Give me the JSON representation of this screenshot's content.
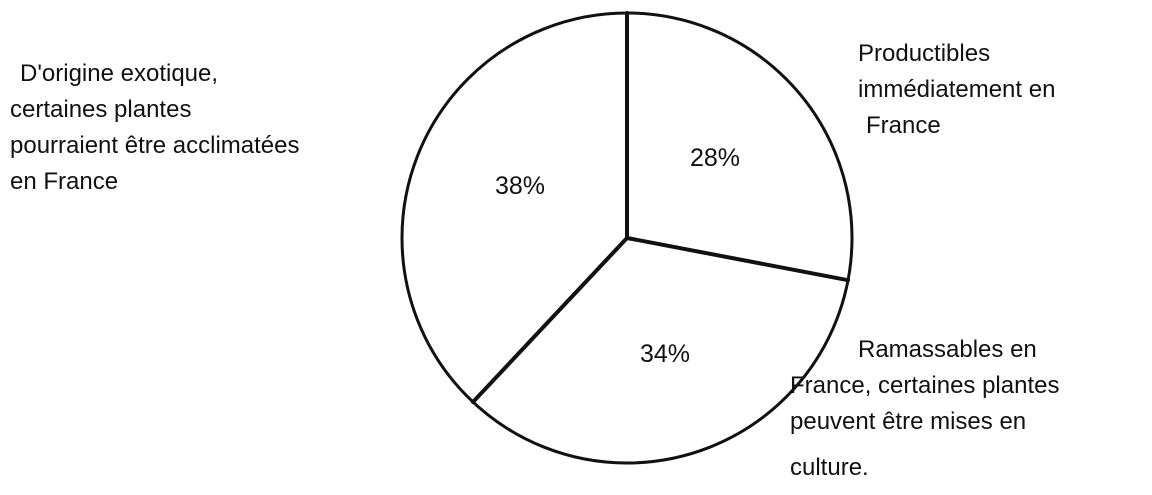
{
  "chart_data": {
    "type": "pie",
    "start_angle_deg": 0,
    "direction": "clockwise",
    "slices": [
      {
        "value": 28,
        "value_label": "28%",
        "category_lines": [
          "Productibles",
          "immédiatement en",
          "France"
        ]
      },
      {
        "value": 34,
        "value_label": "34%",
        "category_lines": [
          "Ramassables en",
          "France, certaines plantes",
          "peuvent être mises en",
          "culture."
        ]
      },
      {
        "value": 38,
        "value_label": "38%",
        "category_lines": [
          "D'origine exotique,",
          "certaines plantes",
          "pourraient être acclimatées",
          "en France"
        ]
      }
    ],
    "colors": {
      "fill": "#ffffff",
      "stroke": "#111111"
    }
  }
}
